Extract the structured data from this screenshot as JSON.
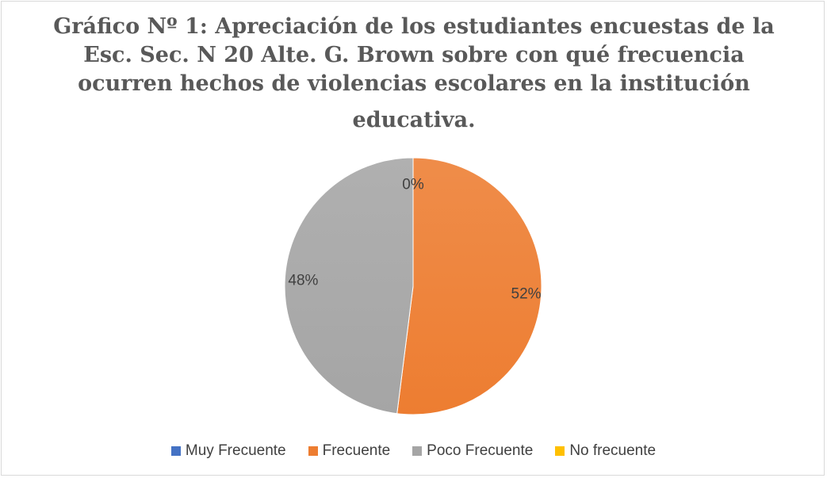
{
  "chart_data": {
    "type": "pie",
    "title_lines": [
      "Gráfico Nº 1: Apreciación de los estudiantes encuestas de la",
      "Esc. Sec. N 20 Alte. G. Brown sobre con qué frecuencia",
      "ocurren hechos de violencias escolares en la institución",
      "educativa."
    ],
    "categories": [
      "Muy Frecuente",
      "Frecuente",
      "Poco Frecuente",
      "No frecuente"
    ],
    "values": [
      0,
      52,
      48,
      0
    ],
    "data_labels": [
      "0%",
      "52%",
      "48%",
      ""
    ],
    "colors": [
      "#4472c4",
      "#ed7d31",
      "#a5a5a5",
      "#ffc000"
    ],
    "legend_position": "bottom"
  }
}
